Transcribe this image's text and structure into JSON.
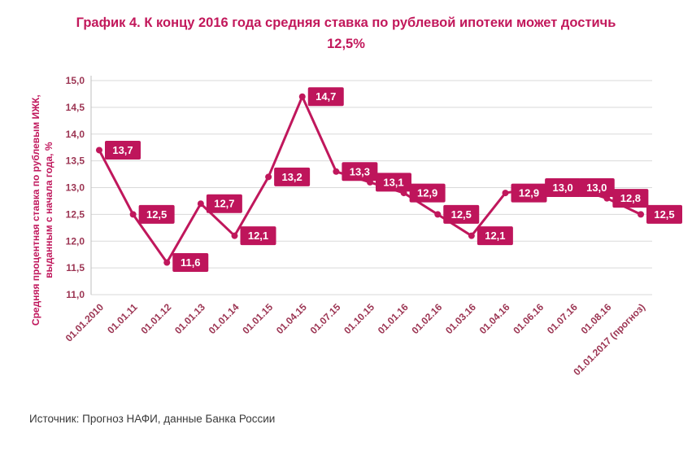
{
  "header": {
    "line1": "График 4.  К концу 2016 года средняя ставка по рублевой ипотеки может достичь",
    "line2": "12,5%"
  },
  "source": "Источник: Прогноз НАФИ, данные Банка России",
  "chart_data": {
    "type": "line",
    "title": "График 4.  К концу 2016 года средняя ставка по рублевой ипотеки может достичь 12,5%",
    "ylabel": "Средняя процентная ставка по рублевым ИЖК, выданным с начала года, %",
    "xlabel": "",
    "categories": [
      "01.01.2010",
      "01.01.11",
      "01.01.12",
      "01.01.13",
      "01.01.14",
      "01.01.15",
      "01.04.15",
      "01.07.15",
      "01.10.15",
      "01.01.16",
      "01.02.16",
      "01.03.16",
      "01.04.16",
      "01.06.16",
      "01.07.16",
      "01.08.16",
      "01.01.2017 (прогноз)"
    ],
    "values": [
      13.7,
      12.5,
      11.6,
      12.7,
      12.1,
      13.2,
      14.7,
      13.3,
      13.1,
      12.9,
      12.5,
      12.1,
      12.9,
      13.0,
      13.0,
      12.8,
      12.5
    ],
    "point_labels": [
      "13,7",
      "12,5",
      "11,6",
      "12,7",
      "12,1",
      "13,2",
      "14,7",
      "13,3",
      "13,1",
      "12,9",
      "12,5",
      "12,1",
      "12,9",
      "13,0",
      "13,0",
      "12,8",
      "12,5"
    ],
    "yticks": [
      "11,0",
      "11,5",
      "12,0",
      "12,5",
      "13,0",
      "13,5",
      "14,0",
      "14,5",
      "15,0"
    ],
    "ytick_step": 0.5,
    "ylim": [
      11.0,
      15.0
    ],
    "grid": true,
    "legend": "none",
    "colors": {
      "line": "#c0175c",
      "marker": "#c0175c",
      "label_bg": "#be155b",
      "label_text": "#ffffff",
      "tick_text": "#9c3553",
      "grid": "#d9d9d9",
      "axis": "#bfbfbf",
      "title": "#c2185b"
    }
  }
}
